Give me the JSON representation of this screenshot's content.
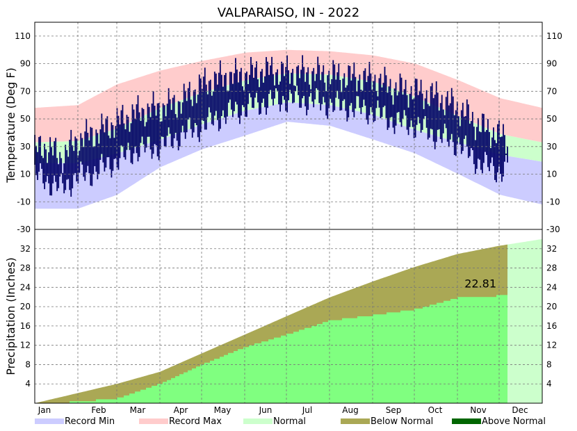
{
  "title": "VALPARAISO, IN - 2022",
  "colors": {
    "record_min": "#ccccff",
    "record_max": "#ffcccc",
    "normal": "#ccffcc",
    "below_normal": "#aaa855",
    "above_normal": "#006600",
    "actual_temp": "#000066",
    "precip_actual": "#80ff80",
    "future_normal": "#ccffcc"
  },
  "legend": [
    {
      "key": "record_min",
      "label": "Record Min"
    },
    {
      "key": "record_max",
      "label": "Record Max"
    },
    {
      "key": "normal",
      "label": "Normal"
    },
    {
      "key": "below_normal",
      "label": "Below Normal"
    },
    {
      "key": "above_normal",
      "label": "Above Normal"
    }
  ],
  "chart_data": [
    {
      "type": "area",
      "panel": "temperature",
      "ylabel": "Temperature (Deg F)",
      "ylim": [
        -30,
        120
      ],
      "yticks": [
        -30,
        -10,
        10,
        30,
        50,
        70,
        90,
        110
      ],
      "grid": true,
      "x_unit": "day of year 2022",
      "last_observed_day": 340,
      "normal_high": [
        [
          1,
          33
        ],
        [
          32,
          34
        ],
        [
          60,
          43
        ],
        [
          91,
          58
        ],
        [
          121,
          69
        ],
        [
          152,
          78
        ],
        [
          182,
          83
        ],
        [
          213,
          82
        ],
        [
          244,
          77
        ],
        [
          274,
          66
        ],
        [
          305,
          52
        ],
        [
          335,
          39
        ],
        [
          365,
          33
        ]
      ],
      "normal_low": [
        [
          1,
          18
        ],
        [
          32,
          18
        ],
        [
          60,
          25
        ],
        [
          91,
          35
        ],
        [
          121,
          46
        ],
        [
          152,
          56
        ],
        [
          182,
          62
        ],
        [
          213,
          60
        ],
        [
          244,
          53
        ],
        [
          274,
          42
        ],
        [
          305,
          33
        ],
        [
          335,
          24
        ],
        [
          365,
          19
        ]
      ],
      "record_high": [
        [
          1,
          58
        ],
        [
          32,
          60
        ],
        [
          60,
          75
        ],
        [
          91,
          85
        ],
        [
          121,
          92
        ],
        [
          152,
          98
        ],
        [
          182,
          100
        ],
        [
          213,
          99
        ],
        [
          244,
          96
        ],
        [
          274,
          90
        ],
        [
          305,
          78
        ],
        [
          335,
          65
        ],
        [
          365,
          58
        ]
      ],
      "record_low": [
        [
          1,
          -15
        ],
        [
          32,
          -15
        ],
        [
          60,
          -5
        ],
        [
          91,
          15
        ],
        [
          121,
          28
        ],
        [
          152,
          38
        ],
        [
          182,
          48
        ],
        [
          213,
          45
        ],
        [
          244,
          35
        ],
        [
          274,
          25
        ],
        [
          305,
          10
        ],
        [
          335,
          -5
        ],
        [
          365,
          -12
        ]
      ],
      "observed_high": [
        [
          1,
          28
        ],
        [
          10,
          30
        ],
        [
          20,
          22
        ],
        [
          32,
          35
        ],
        [
          45,
          40
        ],
        [
          60,
          48
        ],
        [
          75,
          55
        ],
        [
          91,
          58
        ],
        [
          105,
          62
        ],
        [
          121,
          75
        ],
        [
          135,
          80
        ],
        [
          152,
          82
        ],
        [
          165,
          85
        ],
        [
          182,
          84
        ],
        [
          200,
          83
        ],
        [
          213,
          82
        ],
        [
          230,
          80
        ],
        [
          244,
          79
        ],
        [
          260,
          72
        ],
        [
          274,
          70
        ],
        [
          290,
          66
        ],
        [
          305,
          58
        ],
        [
          320,
          45
        ],
        [
          335,
          38
        ],
        [
          340,
          35
        ]
      ],
      "observed_low": [
        [
          1,
          10
        ],
        [
          10,
          5
        ],
        [
          20,
          0
        ],
        [
          32,
          8
        ],
        [
          45,
          12
        ],
        [
          60,
          20
        ],
        [
          75,
          28
        ],
        [
          91,
          30
        ],
        [
          105,
          38
        ],
        [
          121,
          45
        ],
        [
          135,
          52
        ],
        [
          152,
          58
        ],
        [
          165,
          62
        ],
        [
          182,
          64
        ],
        [
          200,
          63
        ],
        [
          213,
          60
        ],
        [
          230,
          58
        ],
        [
          244,
          55
        ],
        [
          260,
          48
        ],
        [
          274,
          45
        ],
        [
          290,
          38
        ],
        [
          305,
          32
        ],
        [
          320,
          18
        ],
        [
          335,
          12
        ],
        [
          340,
          15
        ]
      ]
    },
    {
      "type": "area",
      "panel": "precipitation",
      "ylabel": "Precipitation (Inches)",
      "ylim": [
        0,
        36
      ],
      "yticks": [
        4,
        8,
        12,
        16,
        20,
        24,
        28,
        32
      ],
      "grid": true,
      "categories": [
        "Jan",
        "Feb",
        "Mar",
        "Apr",
        "May",
        "Jun",
        "Jul",
        "Aug",
        "Sep",
        "Oct",
        "Nov",
        "Dec"
      ],
      "normal_cumulative": [
        [
          0,
          0
        ],
        [
          31,
          2.1
        ],
        [
          59,
          4.0
        ],
        [
          90,
          6.5
        ],
        [
          120,
          10.3
        ],
        [
          151,
          14.2
        ],
        [
          181,
          18.0
        ],
        [
          212,
          21.9
        ],
        [
          243,
          25.2
        ],
        [
          273,
          28.2
        ],
        [
          304,
          30.9
        ],
        [
          334,
          32.6
        ],
        [
          365,
          34.0
        ]
      ],
      "actual_cumulative": [
        [
          0,
          0
        ],
        [
          31,
          0.5
        ],
        [
          59,
          1.2
        ],
        [
          90,
          4.2
        ],
        [
          120,
          8.2
        ],
        [
          151,
          11.8
        ],
        [
          181,
          14.4
        ],
        [
          212,
          17.3
        ],
        [
          243,
          18.4
        ],
        [
          273,
          19.6
        ],
        [
          304,
          22.0
        ],
        [
          330,
          22.3
        ],
        [
          340,
          22.81
        ]
      ],
      "annotation": "22.81"
    }
  ]
}
